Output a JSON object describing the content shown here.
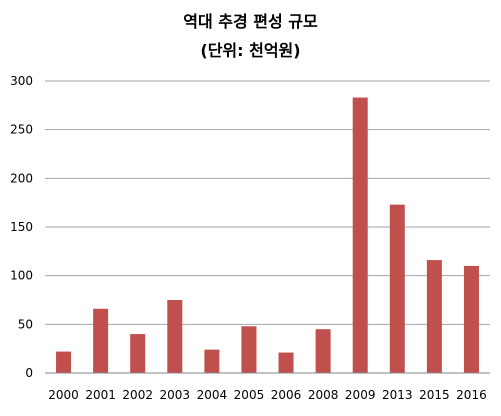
{
  "chart_data": {
    "type": "bar",
    "title": "역대 추경 편성 규모",
    "subtitle": "(단위: 천억원)",
    "categories": [
      "2000",
      "2001",
      "2002",
      "2003",
      "2004",
      "2005",
      "2006",
      "2008",
      "2009",
      "2013",
      "2015",
      "2016"
    ],
    "values": [
      22,
      66,
      40,
      75,
      24,
      48,
      21,
      45,
      283,
      173,
      116,
      110
    ],
    "ylim": [
      0,
      300
    ],
    "yticks": [
      0,
      50,
      100,
      150,
      200,
      250,
      300
    ],
    "grid": true,
    "legend": "none",
    "bar_color": "#c0504d"
  }
}
